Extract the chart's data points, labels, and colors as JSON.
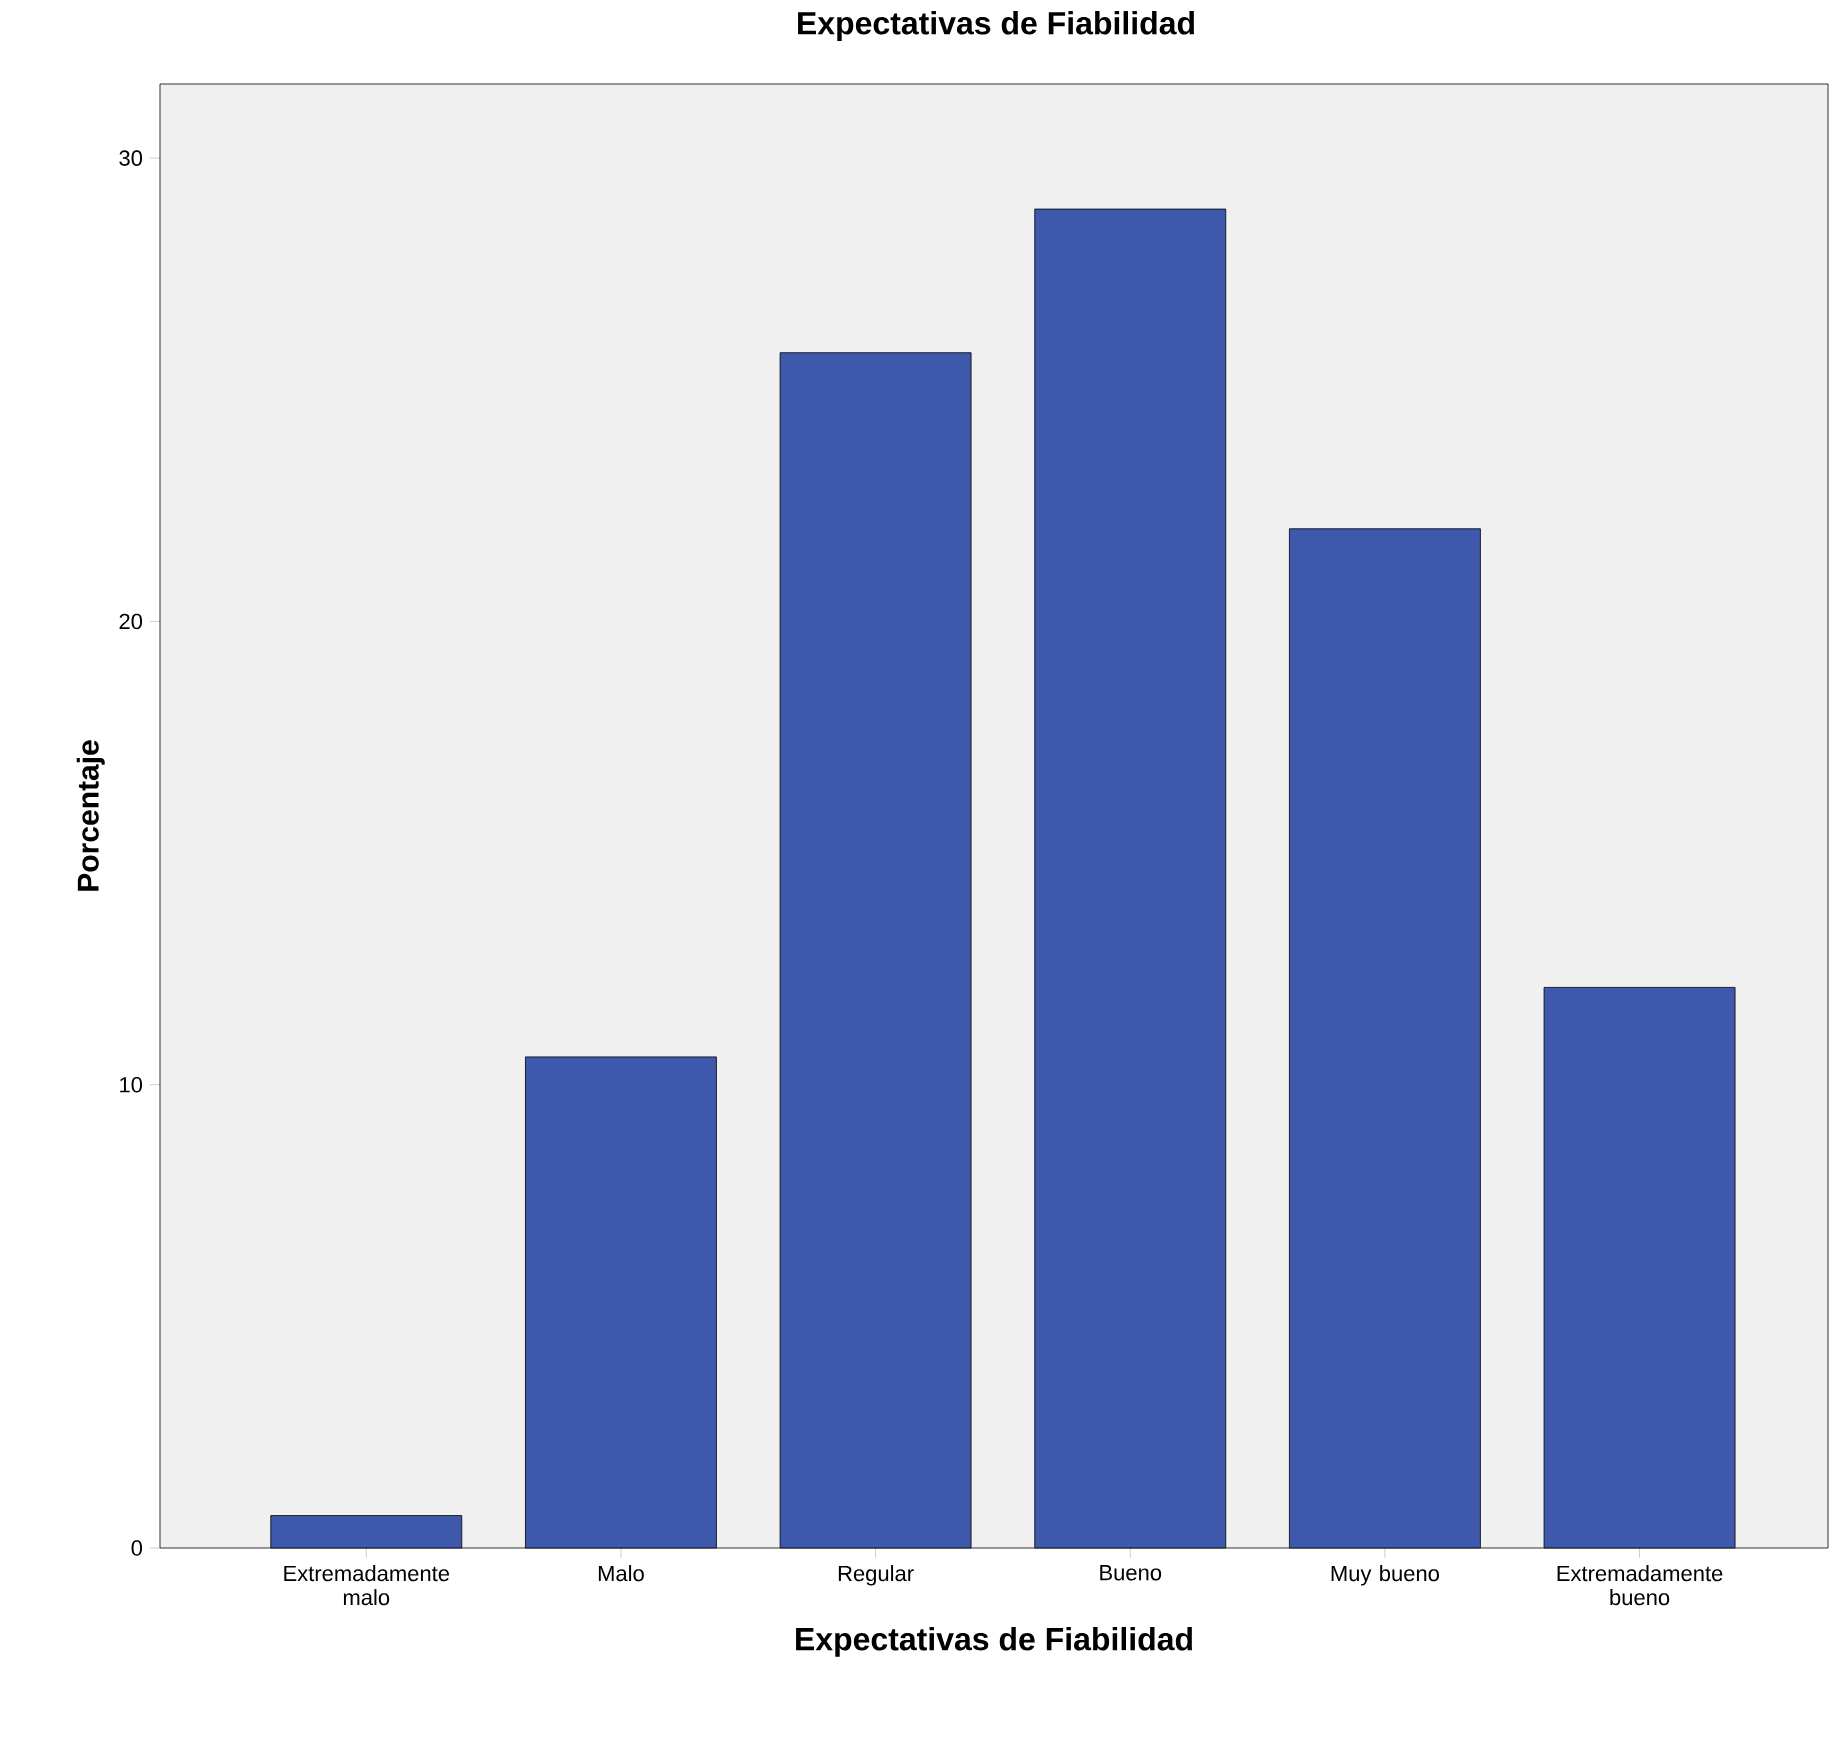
{
  "chart_data": {
    "type": "bar",
    "title": "Expectativas de Fiabilidad",
    "xlabel": "Expectativas de Fiabilidad",
    "ylabel": "Porcentaje",
    "categories": [
      "Extremadamente malo",
      "Malo",
      "Regular",
      "Bueno",
      "Muy bueno",
      "Extremadamente bueno"
    ],
    "values": [
      0.7,
      10.6,
      25.8,
      28.9,
      22.0,
      12.1
    ],
    "color": "#3e58ac",
    "ylim": [
      0,
      31.6
    ],
    "yticks": [
      0,
      10,
      20,
      30
    ]
  }
}
